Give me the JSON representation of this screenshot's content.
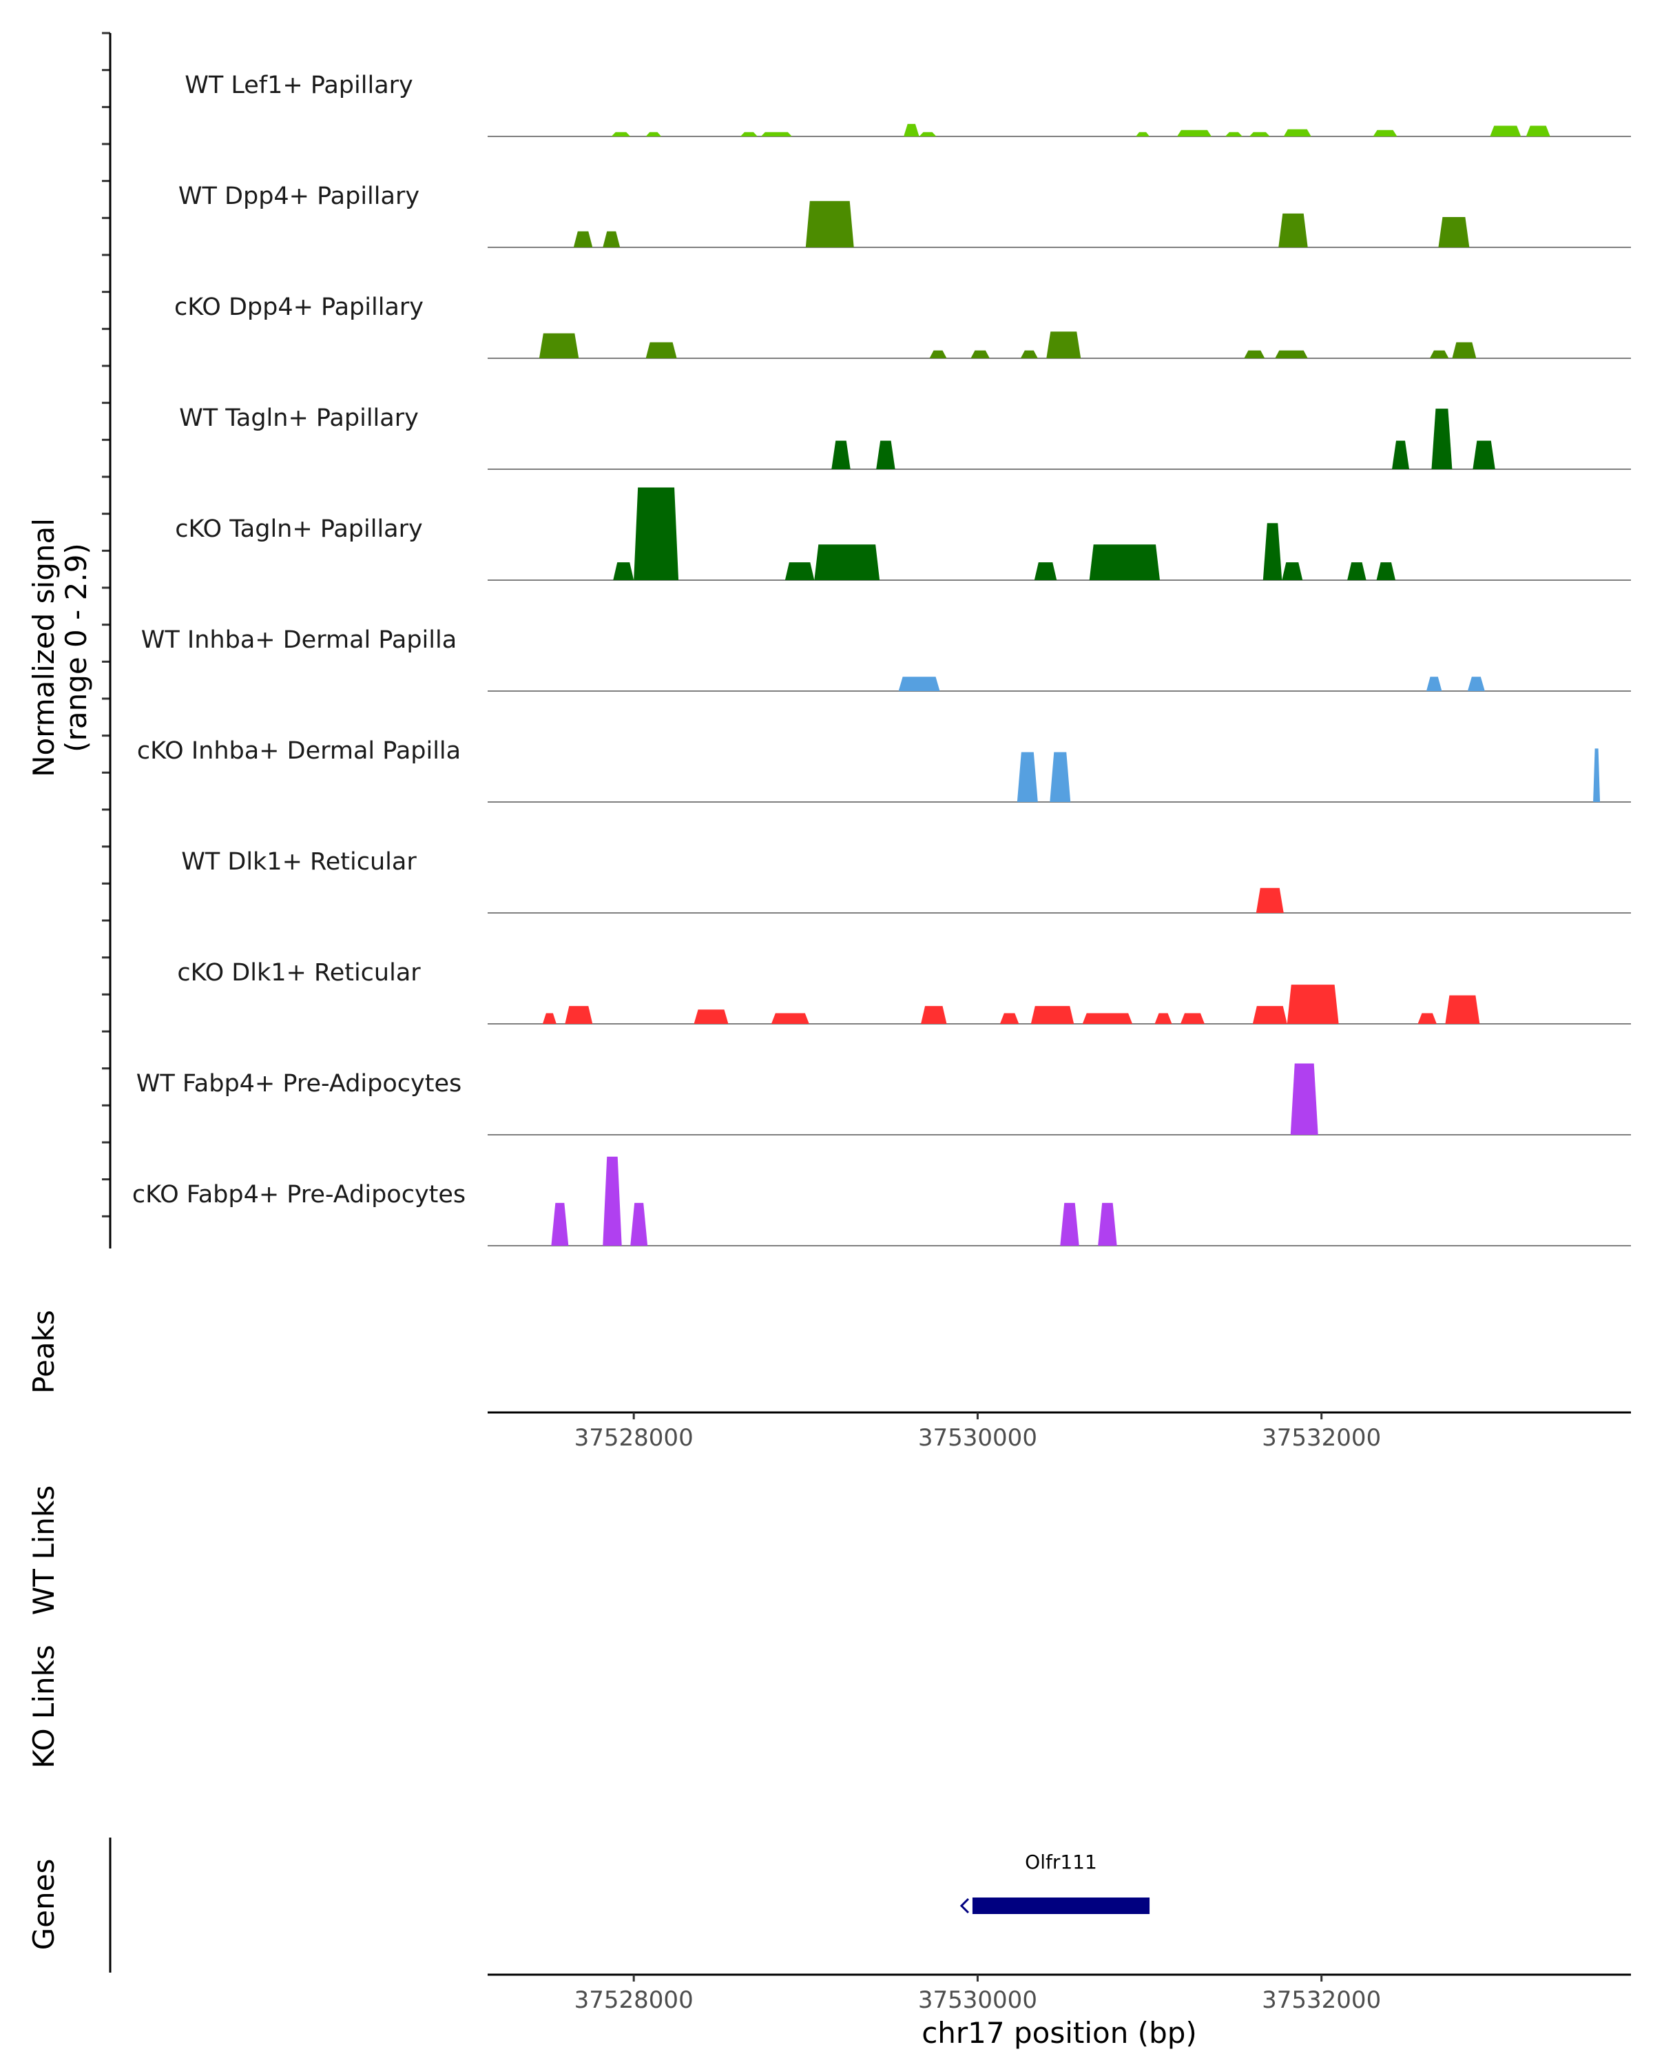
{
  "chart_data": {
    "type": "area",
    "title": "",
    "ylabel": "Normalized signal",
    "yrange_label": "(range 0 - 2.9)",
    "ylim": [
      0,
      2.9
    ],
    "xlabel": "chr17 position (bp)",
    "xlim": [
      37527150,
      37533800
    ],
    "xticks": [
      37528000,
      37530000,
      37532000
    ],
    "xtick_labels": [
      "37528000",
      "37530000",
      "37532000"
    ],
    "tracks": [
      {
        "name": "WT Lef1+ Papillary",
        "color": "#66CC00",
        "peaks": [
          [
            37527870,
            37527980,
            0.12
          ],
          [
            37528070,
            37528160,
            0.12
          ],
          [
            37528620,
            37528720,
            0.12
          ],
          [
            37528740,
            37528920,
            0.12
          ],
          [
            37529570,
            37529660,
            0.35
          ],
          [
            37529660,
            37529760,
            0.12
          ],
          [
            37530920,
            37531000,
            0.12
          ],
          [
            37531160,
            37531360,
            0.18
          ],
          [
            37531440,
            37531540,
            0.12
          ],
          [
            37531580,
            37531700,
            0.12
          ],
          [
            37531780,
            37531940,
            0.2
          ],
          [
            37532300,
            37532440,
            0.18
          ],
          [
            37532980,
            37533160,
            0.3
          ],
          [
            37533190,
            37533330,
            0.3
          ]
        ]
      },
      {
        "name": "WT Dpp4+ Papillary",
        "color": "#4C8C00",
        "peaks": [
          [
            37527650,
            37527760,
            0.45
          ],
          [
            37527820,
            37527920,
            0.45
          ],
          [
            37529000,
            37529280,
            1.3
          ],
          [
            37531750,
            37531920,
            0.95
          ],
          [
            37532680,
            37532860,
            0.85
          ]
        ]
      },
      {
        "name": "cKO Dpp4+ Papillary",
        "color": "#4C8C00",
        "peaks": [
          [
            37527450,
            37527680,
            0.7
          ],
          [
            37528070,
            37528250,
            0.45
          ],
          [
            37529720,
            37529820,
            0.22
          ],
          [
            37529960,
            37530070,
            0.22
          ],
          [
            37530250,
            37530350,
            0.22
          ],
          [
            37530400,
            37530600,
            0.75
          ],
          [
            37531550,
            37531670,
            0.22
          ],
          [
            37531730,
            37531920,
            0.22
          ],
          [
            37532630,
            37532740,
            0.22
          ],
          [
            37532760,
            37532900,
            0.45
          ]
        ]
      },
      {
        "name": "WT Tagln+ Papillary",
        "color": "#006600",
        "peaks": [
          [
            37529150,
            37529260,
            0.8
          ],
          [
            37529410,
            37529520,
            0.8
          ],
          [
            37532410,
            37532510,
            0.8
          ],
          [
            37532640,
            37532760,
            1.7
          ],
          [
            37532880,
            37533010,
            0.8
          ]
        ]
      },
      {
        "name": "cKO Tagln+ Papillary",
        "color": "#006600",
        "peaks": [
          [
            37527880,
            37528000,
            0.5
          ],
          [
            37528000,
            37528260,
            2.6
          ],
          [
            37528880,
            37529050,
            0.5
          ],
          [
            37529050,
            37529430,
            1.0
          ],
          [
            37530330,
            37530460,
            0.5
          ],
          [
            37530650,
            37531060,
            1.0
          ],
          [
            37531660,
            37531770,
            1.6
          ],
          [
            37531770,
            37531890,
            0.5
          ],
          [
            37532150,
            37532260,
            0.5
          ],
          [
            37532320,
            37532430,
            0.5
          ]
        ]
      },
      {
        "name": "WT Inhba+ Dermal Papilla",
        "color": "#56A0E0",
        "peaks": [
          [
            37529540,
            37529780,
            0.4
          ],
          [
            37532610,
            37532700,
            0.4
          ],
          [
            37532850,
            37532950,
            0.4
          ]
        ]
      },
      {
        "name": "cKO Inhba+ Dermal Papilla",
        "color": "#56A0E0",
        "peaks": [
          [
            37530230,
            37530350,
            1.4
          ],
          [
            37530420,
            37530540,
            1.4
          ],
          [
            37533580,
            37533620,
            1.5
          ]
        ]
      },
      {
        "name": "WT Dlk1+ Reticular",
        "color": "#FF3030",
        "peaks": [
          [
            37531620,
            37531780,
            0.7
          ]
        ]
      },
      {
        "name": "cKO Dlk1+ Reticular",
        "color": "#FF3030",
        "peaks": [
          [
            37527470,
            37527550,
            0.3
          ],
          [
            37527600,
            37527760,
            0.5
          ],
          [
            37528350,
            37528550,
            0.4
          ],
          [
            37528800,
            37529020,
            0.3
          ],
          [
            37529670,
            37529820,
            0.5
          ],
          [
            37530130,
            37530240,
            0.3
          ],
          [
            37530310,
            37530560,
            0.5
          ],
          [
            37530610,
            37530900,
            0.3
          ],
          [
            37531030,
            37531130,
            0.3
          ],
          [
            37531180,
            37531320,
            0.3
          ],
          [
            37531600,
            37531800,
            0.5
          ],
          [
            37531800,
            37532100,
            1.1
          ],
          [
            37532560,
            37532670,
            0.3
          ],
          [
            37532720,
            37532920,
            0.8
          ]
        ]
      },
      {
        "name": "WT Fabp4+ Pre-Adipocytes",
        "color": "#B040F0",
        "peaks": [
          [
            37531820,
            37531980,
            2.0
          ]
        ]
      },
      {
        "name": "cKO Fabp4+ Pre-Adipocytes",
        "color": "#B040F0",
        "peaks": [
          [
            37527520,
            37527620,
            1.2
          ],
          [
            37527820,
            37527930,
            2.5
          ],
          [
            37527980,
            37528080,
            1.2
          ],
          [
            37530480,
            37530590,
            1.2
          ],
          [
            37530700,
            37530810,
            1.2
          ]
        ]
      }
    ],
    "other_tracks": [
      "Peaks",
      "WT Links",
      "KO Links",
      "Genes"
    ],
    "genes": [
      {
        "name": "Olfr111",
        "start": 37529970,
        "end": 37531000,
        "strand": "-",
        "color": "#000080"
      }
    ]
  }
}
